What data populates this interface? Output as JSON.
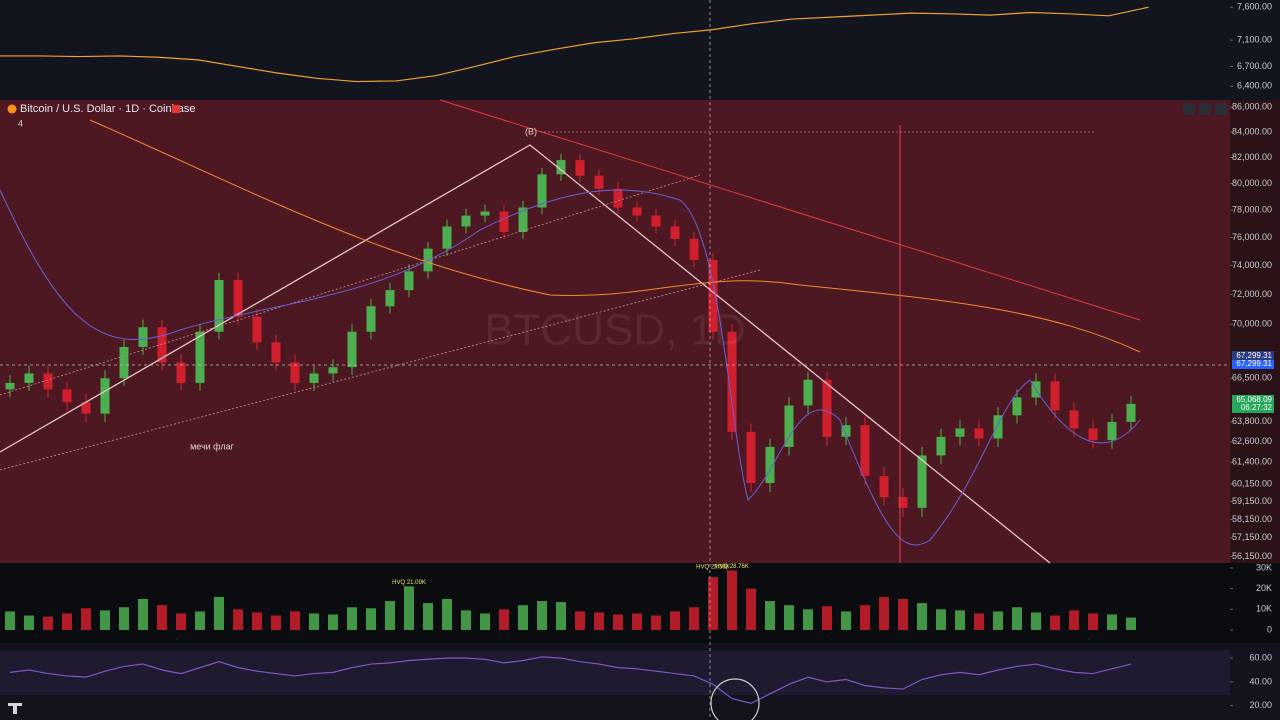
{
  "header": {
    "symbol": "Bitcoin / U.S. Dollar · 1D · Coinbase",
    "indicator_count": "4"
  },
  "watermark": "BTCUSD, 1D",
  "annotations": {
    "wave_label": "(B)",
    "note": "мечи флаг"
  },
  "price_tags": [
    {
      "label": "67,299.31"
    },
    {
      "label": "67,299.31"
    },
    {
      "label": "65,068.09"
    },
    {
      "label": "06:27:32"
    }
  ],
  "chart_data": [
    {
      "type": "candlestick",
      "log_scale": true,
      "up_color": "#4caf50",
      "down_color": "#d0202e",
      "ylim": [
        55800,
        86600
      ],
      "yticks": [
        {
          "value": 86000,
          "label": "86,000.00"
        },
        {
          "value": 84000,
          "label": "84,000.00"
        },
        {
          "value": 82000,
          "label": "82,000.00"
        },
        {
          "value": 80000,
          "label": "80,000.00"
        },
        {
          "value": 78000,
          "label": "78,000.00"
        },
        {
          "value": 76000,
          "label": "76,000.00"
        },
        {
          "value": 74000,
          "label": "74,000.00"
        },
        {
          "value": 72000,
          "label": "72,000.00"
        },
        {
          "value": 70000,
          "label": "70,000.00"
        },
        {
          "value": 66500,
          "label": "66,500.00"
        },
        {
          "value": 63800,
          "label": "63,800.00"
        },
        {
          "value": 62600,
          "label": "62,600.00"
        },
        {
          "value": 61400,
          "label": "61,400.00"
        },
        {
          "value": 60150,
          "label": "60,150.00"
        },
        {
          "value": 59150,
          "label": "59,150.00"
        },
        {
          "value": 58150,
          "label": "58,150.00"
        },
        {
          "value": 57150,
          "label": "57,150.00"
        },
        {
          "value": 56150,
          "label": "56,150.00"
        }
      ],
      "open": [
        65800,
        66200,
        66800,
        65800,
        65000,
        64300,
        66500,
        68500,
        69800,
        67500,
        66200,
        69500,
        73000,
        70500,
        68800,
        67500,
        66200,
        66800,
        67200,
        69500,
        71200,
        72300,
        73600,
        75200,
        76800,
        77600,
        77900,
        76400,
        78200,
        80700,
        81800,
        80600,
        79600,
        78200,
        77600,
        76800,
        75900,
        74400,
        69500,
        63200,
        60200,
        62300,
        64800,
        66400,
        62900,
        63600,
        60600,
        59400,
        58800,
        61800,
        62900,
        63400,
        62800,
        64200,
        65300,
        66300,
        64500,
        63400,
        62700,
        63800
      ],
      "high": [
        66700,
        67300,
        67300,
        66300,
        65500,
        67000,
        69000,
        70300,
        70300,
        68000,
        70000,
        73500,
        73500,
        71000,
        69300,
        68000,
        67300,
        67700,
        70000,
        71700,
        72800,
        74100,
        75700,
        77300,
        78100,
        78400,
        78400,
        78700,
        81200,
        82300,
        82300,
        81100,
        80100,
        78700,
        78100,
        77300,
        76400,
        74900,
        70000,
        63700,
        62800,
        65300,
        66900,
        66900,
        64100,
        64100,
        61100,
        59900,
        62300,
        63400,
        63900,
        63900,
        64700,
        65800,
        66800,
        66800,
        65000,
        63900,
        64300,
        65400
      ],
      "low": [
        65300,
        65700,
        65300,
        64500,
        63800,
        63800,
        66000,
        68000,
        67000,
        65700,
        65700,
        69000,
        70000,
        68300,
        67000,
        65700,
        65700,
        66300,
        66700,
        69000,
        70700,
        71800,
        73100,
        74700,
        76300,
        77100,
        75900,
        75900,
        77700,
        80200,
        80100,
        79100,
        77700,
        77100,
        76300,
        75400,
        73900,
        69000,
        62700,
        59700,
        59700,
        61800,
        64300,
        62400,
        62400,
        60100,
        58900,
        58300,
        58300,
        61300,
        62400,
        62300,
        62300,
        63700,
        64800,
        64000,
        62900,
        62200,
        62200,
        63300
      ],
      "close": [
        66200,
        66800,
        65800,
        65000,
        64300,
        66500,
        68500,
        69800,
        67500,
        66200,
        69500,
        73000,
        70500,
        68800,
        67500,
        66200,
        66800,
        67200,
        69500,
        71200,
        72300,
        73600,
        75200,
        76800,
        77600,
        77900,
        76400,
        78200,
        80700,
        81800,
        80600,
        79600,
        78200,
        77600,
        76800,
        75900,
        74400,
        69500,
        63200,
        60200,
        62300,
        64800,
        66400,
        62900,
        63600,
        60600,
        59400,
        58800,
        61800,
        62900,
        63400,
        62800,
        64200,
        65300,
        66300,
        64500,
        63400,
        62700,
        63800,
        64900
      ]
    },
    {
      "type": "bar",
      "ylim": [
        0,
        32400
      ],
      "yticks": [
        {
          "value": 30000,
          "label": "30K"
        },
        {
          "value": 20000,
          "label": "20K"
        },
        {
          "value": 10000,
          "label": "10K"
        },
        0
      ],
      "values": [
        9000,
        7000,
        6500,
        8000,
        10500,
        9500,
        11000,
        15000,
        12000,
        8000,
        9000,
        16000,
        10000,
        8500,
        7000,
        9000,
        8000,
        7500,
        11000,
        10500,
        14000,
        21090,
        13000,
        15000,
        9500,
        8000,
        10000,
        12000,
        14000,
        13500,
        9000,
        8500,
        7500,
        8000,
        7000,
        9000,
        11000,
        25580,
        28760,
        20000,
        14000,
        12000,
        10000,
        11500,
        9000,
        12000,
        16000,
        15000,
        13000,
        10000,
        9500,
        8000,
        9000,
        11000,
        8500,
        7000,
        9500,
        8000,
        7500,
        6000
      ],
      "value_labels": [
        null,
        null,
        null,
        null,
        null,
        null,
        null,
        null,
        null,
        null,
        null,
        null,
        null,
        null,
        null,
        null,
        null,
        null,
        null,
        null,
        null,
        "HVQ 21.09K",
        null,
        null,
        null,
        null,
        null,
        null,
        null,
        null,
        null,
        null,
        null,
        null,
        null,
        null,
        null,
        "HVQ 25.58K",
        "HVQ 28.76K",
        null,
        null,
        null,
        null,
        null,
        null,
        null,
        null,
        null,
        null,
        null,
        null,
        null,
        null,
        null,
        null,
        null,
        null,
        null,
        null,
        null
      ]
    },
    {
      "type": "line",
      "color": "#7e57c2",
      "ylim": [
        8,
        71
      ],
      "yticks": [
        {
          "value": 60,
          "label": "60.00"
        },
        {
          "value": 40,
          "label": "40.00"
        },
        {
          "value": 20,
          "label": "20.00"
        }
      ],
      "values": [
        48,
        50,
        47,
        45,
        44,
        49,
        53,
        55,
        50,
        47,
        52,
        57,
        52,
        49,
        47,
        45,
        47,
        48,
        52,
        55,
        56,
        58,
        59,
        60,
        60,
        59,
        56,
        58,
        61,
        60,
        57,
        55,
        52,
        51,
        49,
        47,
        45,
        38,
        26,
        22,
        30,
        38,
        44,
        40,
        42,
        37,
        35,
        34,
        42,
        46,
        48,
        46,
        50,
        53,
        55,
        51,
        48,
        47,
        51,
        55
      ]
    },
    {
      "type": "line",
      "color": "#f0a030",
      "ylim": [
        6190,
        7710
      ],
      "yticks": [
        {
          "value": 7600,
          "label": "7,600.00"
        },
        {
          "value": 7100,
          "label": "7,100.00"
        },
        {
          "value": 6700,
          "label": "6,700.00"
        },
        {
          "value": 6400,
          "label": "6,400.00"
        }
      ],
      "values": [
        6860,
        6860,
        6850,
        6860,
        6840,
        6800,
        6700,
        6600,
        6520,
        6470,
        6480,
        6560,
        6700,
        6850,
        6960,
        7060,
        7120,
        7200,
        7260,
        7350,
        7420,
        7450,
        7480,
        7510,
        7500,
        7480,
        7520,
        7500,
        7470,
        7600
      ]
    }
  ]
}
